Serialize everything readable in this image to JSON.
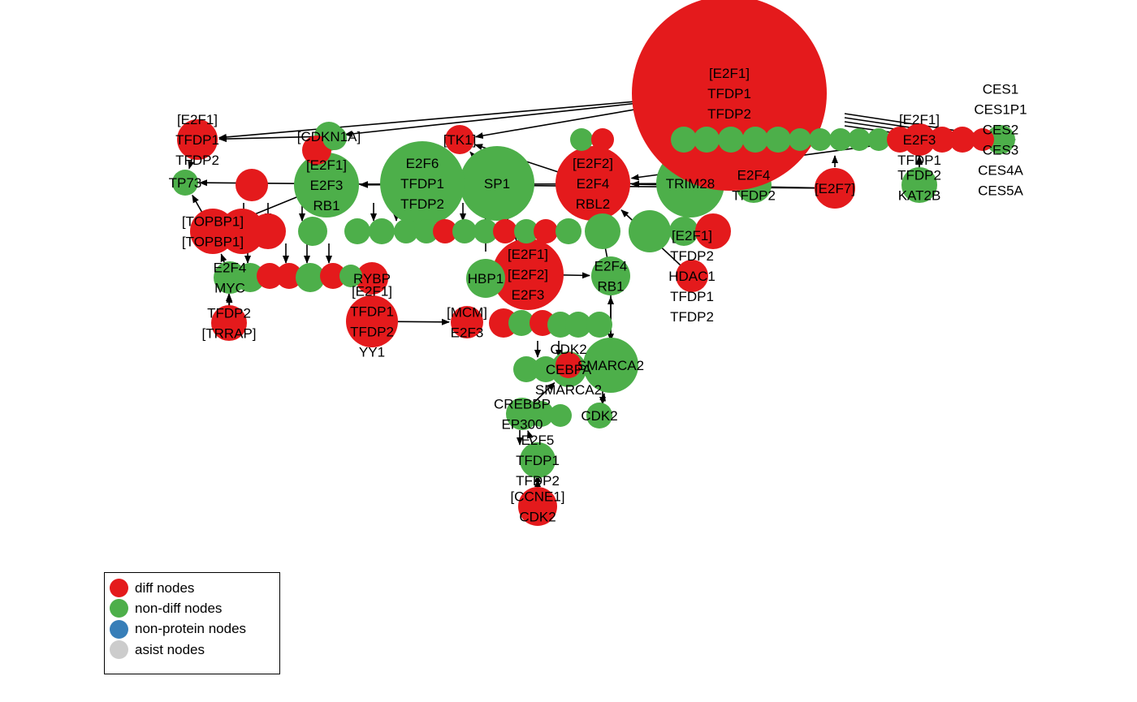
{
  "colors": {
    "diff": "#E41A1C",
    "non_diff": "#4DAF4A",
    "non_protein": "#377EB8",
    "asist": "#CCCCCC"
  },
  "legend": {
    "items": [
      {
        "label": "diff nodes",
        "color_key": "diff"
      },
      {
        "label": "non-diff nodes",
        "color_key": "non_diff"
      },
      {
        "label": "non-protein nodes",
        "color_key": "non_protein"
      },
      {
        "label": "asist nodes",
        "color_key": "asist"
      }
    ]
  },
  "nodes": [
    {
      "id": "e2f1-big",
      "type": "diff",
      "label": "[E2F1]\nTFDP1\nTFDP2"
    },
    {
      "id": "e2f1-tfdp1-left",
      "type": "diff",
      "label": "[E2F1]\nTFDP1\nTFDP2"
    },
    {
      "id": "cdkn1a",
      "type": "non_diff",
      "label": "[CDKN1A]"
    },
    {
      "id": "tk1",
      "type": "diff",
      "label": "[TK1]"
    },
    {
      "id": "e2f6-tfdp1",
      "type": "non_diff",
      "label": "E2F6\nTFDP1\nTFDP2"
    },
    {
      "id": "sp1",
      "type": "non_diff",
      "label": "SP1"
    },
    {
      "id": "e2f3-rb1",
      "type": "non_diff",
      "label": "[E2F1]\nE2F3\nRB1"
    },
    {
      "id": "tp73",
      "type": "non_diff",
      "label": "TP73"
    },
    {
      "id": "e2f2-rbl2",
      "type": "diff",
      "label": "[E2F2]\nE2F4\nRBL2"
    },
    {
      "id": "trim28",
      "type": "non_diff",
      "label": "TRIM28"
    },
    {
      "id": "e2f4-tfdp2",
      "type": "non_diff",
      "label": "E2F4\nTFDP2"
    },
    {
      "id": "e2f7",
      "type": "diff",
      "label": "[E2F7]"
    },
    {
      "id": "e2f1-right",
      "type": "diff",
      "label": "[E2F1]\nE2F3\nTFDP1"
    },
    {
      "id": "kat2b",
      "type": "non_diff",
      "label": "TFDP2\nKAT2B"
    },
    {
      "id": "ces",
      "type": "non_diff",
      "label": "CES1\nCES1P1\nCES2\nCES3\nCES4A\nCES5A"
    },
    {
      "id": "topbp1",
      "type": "diff",
      "label": "[TOPBP1]\n[TOPBP1]"
    },
    {
      "id": "e2f4-myc",
      "type": "non_diff",
      "label": "E2F4\nMYC"
    },
    {
      "id": "tfdp2-trrap",
      "type": "diff",
      "label": "TFDP2\n[TRRAP]"
    },
    {
      "id": "e2f1-tfdp1-yy1",
      "type": "diff",
      "label": "[E2F1]\nTFDP1\nTFDP2\nYY1"
    },
    {
      "id": "rybp",
      "type": "diff",
      "label": "RYBP"
    },
    {
      "id": "hbp1",
      "type": "non_diff",
      "label": "HBP1"
    },
    {
      "id": "e2f2-e2f3",
      "type": "diff",
      "label": "[E2F1]\n[E2F2]\nE2F3"
    },
    {
      "id": "e2f4-rb1",
      "type": "non_diff",
      "label": "E2F4\nRB1"
    },
    {
      "id": "hdac1",
      "type": "diff",
      "label": "[E2F1]\nTFDP2\nHDAC1\nTFDP1\nTFDP2"
    },
    {
      "id": "mcm",
      "type": "diff",
      "label": "[MCM]\nE2F3"
    },
    {
      "id": "smarca2",
      "type": "non_diff",
      "label": "SMARCA2"
    },
    {
      "id": "cdk2-cebpa",
      "type": "non_diff",
      "label": "CDK2\nCEBPA\nSMARCA2"
    },
    {
      "id": "cdk2-small",
      "type": "non_diff",
      "label": "CDK2"
    },
    {
      "id": "crebbp",
      "type": "non_diff",
      "label": "CREBBP\nEP300"
    },
    {
      "id": "e2f5-tfdp1",
      "type": "non_diff",
      "label": "E2F5\nTFDP1\nTFDP2"
    },
    {
      "id": "ccne1-cdk2",
      "type": "diff",
      "label": "[CCNE1]\nCDK2"
    }
  ]
}
